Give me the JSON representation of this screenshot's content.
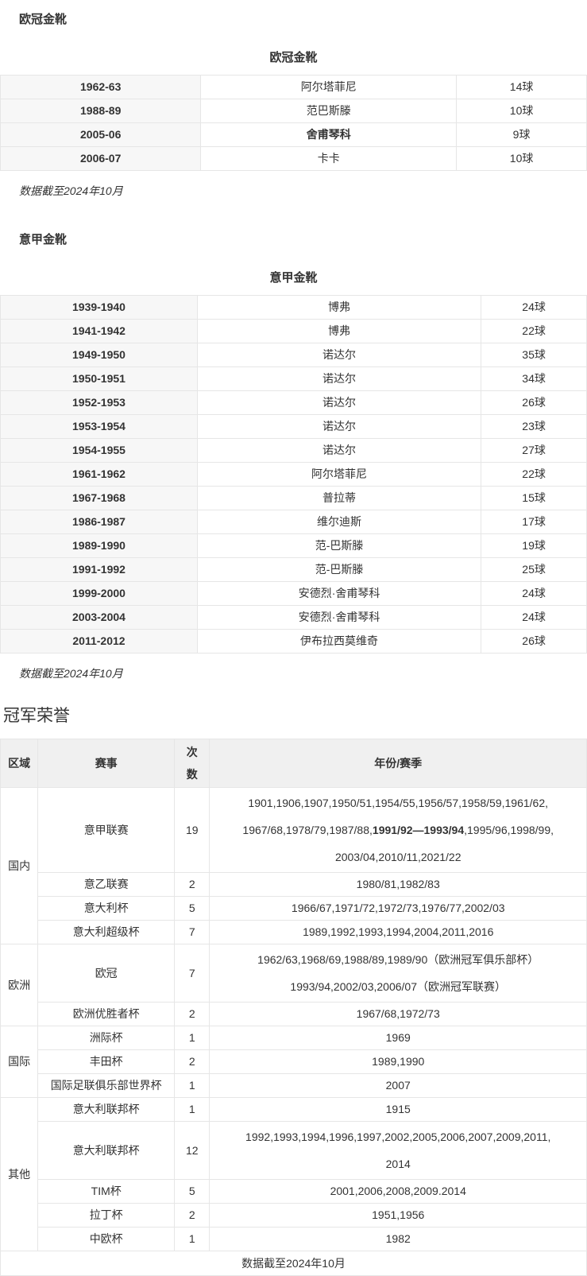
{
  "page": {
    "background": "#ffffff",
    "text_color": "#333333",
    "border_color": "#e6e6e6",
    "first_column_bg": "#f7f7f7",
    "header_row_bg": "#f0f0f0"
  },
  "sections": [
    {
      "heading": "欧冠金靴",
      "table": {
        "caption": "欧冠金靴",
        "rows": [
          [
            "1962-63",
            "阿尔塔菲尼",
            "14球"
          ],
          [
            "1988-89",
            "范巴斯滕",
            "10球"
          ],
          [
            "2005-06",
            "**舍甫琴科**",
            "9球"
          ],
          [
            "2006-07",
            "卡卡",
            "10球"
          ]
        ]
      },
      "note": "数据截至2024年10月"
    },
    {
      "heading": "意甲金靴",
      "table": {
        "caption": "意甲金靴",
        "rows": [
          [
            "1939-1940",
            "博弗",
            "24球"
          ],
          [
            "1941-1942",
            "博弗",
            "22球"
          ],
          [
            "1949-1950",
            "诺达尔",
            "35球"
          ],
          [
            "1950-1951",
            "诺达尔",
            "34球"
          ],
          [
            "1952-1953",
            "诺达尔",
            "26球"
          ],
          [
            "1953-1954",
            "诺达尔",
            "23球"
          ],
          [
            "1954-1955",
            "诺达尔",
            "27球"
          ],
          [
            "1961-1962",
            "阿尔塔菲尼",
            "22球"
          ],
          [
            "1967-1968",
            "普拉蒂",
            "15球"
          ],
          [
            "1986-1987",
            "维尔迪斯",
            "17球"
          ],
          [
            "1989-1990",
            "范-巴斯滕",
            "19球"
          ],
          [
            "1991-1992",
            "范-巴斯滕",
            "25球"
          ],
          [
            "1999-2000",
            "安德烈·舍甫琴科",
            "24球"
          ],
          [
            "2003-2004",
            "安德烈·舍甫琴科",
            "24球"
          ],
          [
            "2011-2012",
            "伊布拉西莫维奇",
            "26球"
          ]
        ]
      },
      "note": "数据截至2024年10月"
    }
  ],
  "honors": {
    "heading": "冠军荣誉",
    "columns": [
      "区域",
      "赛事",
      "次数",
      "年份/赛季"
    ],
    "groups": [
      {
        "region": "国内",
        "rows": [
          {
            "event": "意甲联赛",
            "count": "19",
            "years": [
              "1901,1906,1907,1950/51,1954/55,1956/57,1958/59,1961/62,",
              "1967/68,1978/79,1987/88,**1991/92—1993/94**,1995/96,1998/99,",
              "2003/04,2010/11,2021/22"
            ]
          },
          {
            "event": "意乙联赛",
            "count": "2",
            "years": [
              "1980/81,1982/83"
            ]
          },
          {
            "event": "意大利杯",
            "count": "5",
            "years": [
              "1966/67,1971/72,1972/73,1976/77,2002/03"
            ]
          },
          {
            "event": "意大利超级杯",
            "count": "7",
            "years": [
              "1989,1992,1993,1994,2004,2011,2016"
            ]
          }
        ]
      },
      {
        "region": "欧洲",
        "rows": [
          {
            "event": "欧冠",
            "count": "7",
            "years": [
              "1962/63,1968/69,1988/89,1989/90（欧洲冠军俱乐部杯）",
              "1993/94,2002/03,2006/07（欧洲冠军联赛）"
            ]
          },
          {
            "event": "欧洲优胜者杯",
            "count": "2",
            "years": [
              "1967/68,1972/73"
            ]
          }
        ]
      },
      {
        "region": "国际",
        "rows": [
          {
            "event": "洲际杯",
            "count": "1",
            "years": [
              "1969"
            ]
          },
          {
            "event": "丰田杯",
            "count": "2",
            "years": [
              "1989,1990"
            ]
          },
          {
            "event": "国际足联俱乐部世界杯",
            "count": "1",
            "years": [
              "2007"
            ]
          }
        ]
      },
      {
        "region": "其他",
        "rows": [
          {
            "event": "意大利联邦杯",
            "count": "1",
            "years": [
              "1915"
            ]
          },
          {
            "event": "意大利联邦杯",
            "count": "12",
            "years": [
              "1992,1993,1994,1996,1997,2002,2005,2006,2007,2009,2011,",
              "2014"
            ]
          },
          {
            "event": "TIM杯",
            "count": "5",
            "years": [
              "2001,2006,2008,2009.2014"
            ]
          },
          {
            "event": "拉丁杯",
            "count": "2",
            "years": [
              "1951,1956"
            ]
          },
          {
            "event": "中欧杯",
            "count": "1",
            "years": [
              "1982"
            ]
          }
        ]
      }
    ],
    "footer": "数据截至2024年10月"
  }
}
